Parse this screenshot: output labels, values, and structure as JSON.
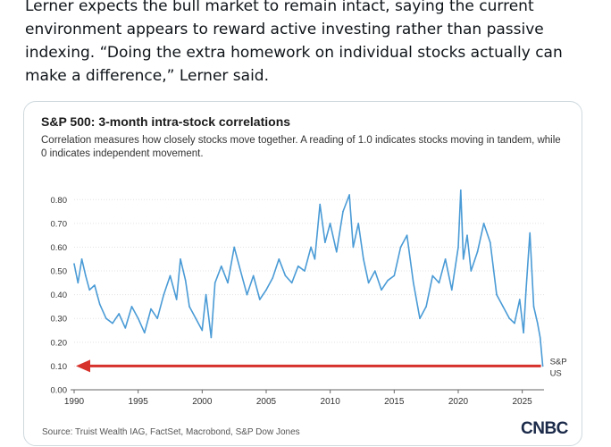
{
  "post": {
    "text": "Lerner expects the bull market to remain intact, saying the current environment appears to reward active investing rather than passive indexing. “Doing the extra homework on individual stocks actually can make a difference,” Lerner said."
  },
  "card": {
    "source": "Source: Truist Wealth IAG, FactSet, Macrobond, S&P Dow Jones",
    "logo": "CNBC"
  },
  "colors": {
    "line": "#4a9bd6",
    "arrow": "#d7312b",
    "axis": "#666666",
    "grid": "#e2e2e2"
  },
  "chart_data": {
    "type": "line",
    "title": "S&P 500: 3-month intra-stock correlations",
    "subtitle": "Correlation measures how closely stocks move together. A reading of 1.0 indicates stocks moving in tandem, while 0 indicates independent movement.",
    "xlabel": "",
    "ylabel": "",
    "xlim": [
      1990,
      2026.7
    ],
    "ylim": [
      0,
      0.85
    ],
    "x_ticks": [
      1990,
      1995,
      2000,
      2005,
      2010,
      2015,
      2020,
      2025
    ],
    "y_ticks": [
      "0.00",
      "0.10",
      "0.20",
      "0.30",
      "0.40",
      "0.50",
      "0.60",
      "0.70",
      "0.80"
    ],
    "grid": true,
    "series": [
      {
        "name": "S&P US",
        "label": [
          "S&P",
          "US"
        ],
        "x": [
          1990.0,
          1990.3,
          1990.6,
          1990.9,
          1991.2,
          1991.6,
          1992.0,
          1992.5,
          1993.0,
          1993.5,
          1994.0,
          1994.5,
          1995.0,
          1995.5,
          1996.0,
          1996.5,
          1997.0,
          1997.5,
          1998.0,
          1998.3,
          1998.7,
          1999.0,
          1999.5,
          2000.0,
          2000.3,
          2000.7,
          2001.0,
          2001.5,
          2002.0,
          2002.5,
          2003.0,
          2003.5,
          2004.0,
          2004.5,
          2005.0,
          2005.5,
          2006.0,
          2006.5,
          2007.0,
          2007.5,
          2008.0,
          2008.5,
          2008.8,
          2009.2,
          2009.6,
          2010.0,
          2010.5,
          2011.0,
          2011.5,
          2011.8,
          2012.2,
          2012.6,
          2013.0,
          2013.5,
          2014.0,
          2014.5,
          2015.0,
          2015.5,
          2016.0,
          2016.5,
          2017.0,
          2017.5,
          2018.0,
          2018.5,
          2019.0,
          2019.5,
          2020.0,
          2020.2,
          2020.4,
          2020.7,
          2021.0,
          2021.5,
          2022.0,
          2022.5,
          2023.0,
          2023.5,
          2024.0,
          2024.4,
          2024.8,
          2025.1,
          2025.3,
          2025.6,
          2025.9,
          2026.2,
          2026.4,
          2026.6
        ],
        "y": [
          0.53,
          0.45,
          0.55,
          0.48,
          0.42,
          0.44,
          0.36,
          0.3,
          0.28,
          0.32,
          0.26,
          0.35,
          0.3,
          0.24,
          0.34,
          0.3,
          0.4,
          0.48,
          0.38,
          0.55,
          0.46,
          0.35,
          0.3,
          0.25,
          0.4,
          0.22,
          0.45,
          0.52,
          0.45,
          0.6,
          0.5,
          0.4,
          0.48,
          0.38,
          0.42,
          0.47,
          0.55,
          0.48,
          0.45,
          0.52,
          0.5,
          0.6,
          0.55,
          0.78,
          0.62,
          0.7,
          0.58,
          0.75,
          0.82,
          0.6,
          0.7,
          0.55,
          0.45,
          0.5,
          0.42,
          0.46,
          0.48,
          0.6,
          0.65,
          0.45,
          0.3,
          0.35,
          0.48,
          0.45,
          0.55,
          0.42,
          0.6,
          0.84,
          0.55,
          0.65,
          0.5,
          0.58,
          0.7,
          0.62,
          0.4,
          0.35,
          0.3,
          0.28,
          0.38,
          0.24,
          0.42,
          0.66,
          0.35,
          0.28,
          0.22,
          0.1
        ]
      }
    ]
  }
}
